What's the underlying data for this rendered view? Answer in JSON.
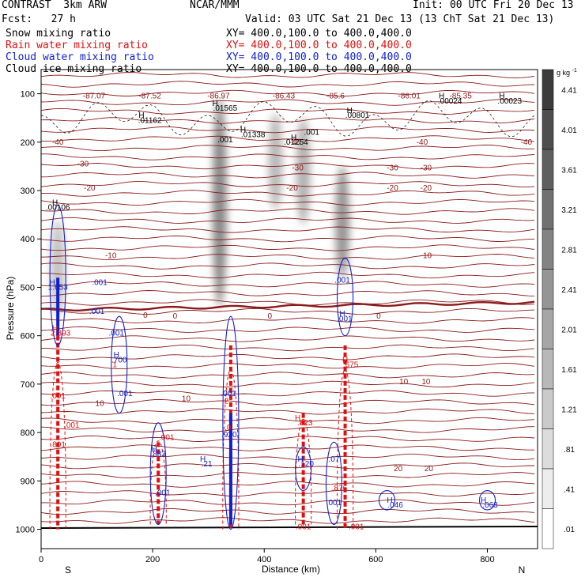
{
  "header": {
    "model": "CONTRAST  3km ARW",
    "center": "NCAR/MMM",
    "init": "Init: 00 UTC Fri 20 Dec 13",
    "fcst": "Fcst:   27 h",
    "valid": "Valid: 03 UTC Sat 21 Dec 13 (13 ChT Sat 21 Dec 13)"
  },
  "fields": [
    {
      "name": "Snow mixing ratio",
      "xy": "XY= 400.0,100.0 to 400.0,400.0",
      "color": "#000000"
    },
    {
      "name": "Rain water mixing ratio",
      "xy": "XY= 400.0,100.0 to 400.0,400.0",
      "color": "#e01010"
    },
    {
      "name": "Cloud water mixing ratio",
      "xy": "XY= 400.0,100.0 to 400.0,400.0",
      "color": "#1020d0"
    },
    {
      "name": "Cloud ice mixing ratio",
      "xy": "XY= 400.0,100.0 to 400.0,400.0",
      "color": "#000000"
    }
  ],
  "colors": {
    "temperature": "#8b1a1a",
    "rain": "#e01010",
    "cloud_water": "#1020d0",
    "snow_shade": "#6a6a6a"
  },
  "chart_data": {
    "type": "heatmap",
    "xlabel": "Distance (km)",
    "ylabel": "Pressure (hPa)",
    "x_ticks": [
      0,
      200,
      400,
      600,
      800
    ],
    "y_ticks": [
      100,
      200,
      300,
      400,
      500,
      600,
      700,
      800,
      900,
      1000
    ],
    "xlim": [
      0,
      890
    ],
    "ylim": [
      1040,
      50
    ],
    "y_direction": "pressure increasing downward",
    "end_labels": {
      "left": "S",
      "right": "N"
    },
    "colorbar": {
      "unit": "g kg",
      "unit_sup": "-1",
      "labels": [
        "4.41",
        "4.01",
        "3.61",
        "3.21",
        "2.81",
        "2.41",
        "2.01",
        "1.61",
        "1.21",
        ".81",
        ".41",
        ".01"
      ]
    },
    "snow_columns": [
      {
        "x": 320,
        "p_top": 110,
        "p_bottom": 540,
        "max": 3.0
      },
      {
        "x": 540,
        "p_top": 250,
        "p_bottom": 480,
        "max": 2.5
      },
      {
        "x": 470,
        "p_top": 150,
        "p_bottom": 370,
        "max": 1.6
      },
      {
        "x": 420,
        "p_top": 140,
        "p_bottom": 340,
        "max": 1.4
      },
      {
        "x": 30,
        "p_top": 360,
        "p_bottom": 560,
        "max": 1.0
      }
    ],
    "temperature_labels": [
      {
        "x": 95,
        "p": 110,
        "text": "-87.07"
      },
      {
        "x": 195,
        "p": 110,
        "text": "-87.52"
      },
      {
        "x": 318,
        "p": 110,
        "text": "-86.97"
      },
      {
        "x": 435,
        "p": 110,
        "text": "-86.43"
      },
      {
        "x": 528,
        "p": 110,
        "text": "-85.6"
      },
      {
        "x": 660,
        "p": 110,
        "text": "-86.01"
      },
      {
        "x": 752,
        "p": 110,
        "text": "-85.35"
      },
      {
        "x": 30,
        "p": 205,
        "text": "-40"
      },
      {
        "x": 455,
        "p": 205,
        "text": "-40"
      },
      {
        "x": 683,
        "p": 205,
        "text": "-40"
      },
      {
        "x": 870,
        "p": 205,
        "text": "-40"
      },
      {
        "x": 75,
        "p": 250,
        "text": "-30"
      },
      {
        "x": 460,
        "p": 258,
        "text": "-30"
      },
      {
        "x": 630,
        "p": 258,
        "text": "-30"
      },
      {
        "x": 690,
        "p": 258,
        "text": "-30"
      },
      {
        "x": 87,
        "p": 300,
        "text": "-20"
      },
      {
        "x": 450,
        "p": 300,
        "text": "-20"
      },
      {
        "x": 630,
        "p": 300,
        "text": "-20"
      },
      {
        "x": 690,
        "p": 300,
        "text": "-20"
      },
      {
        "x": 125,
        "p": 440,
        "text": "-10"
      },
      {
        "x": 690,
        "p": 440,
        "text": "-10"
      },
      {
        "x": 187,
        "p": 563,
        "text": "0"
      },
      {
        "x": 240,
        "p": 565,
        "text": "0"
      },
      {
        "x": 410,
        "p": 565,
        "text": "0"
      },
      {
        "x": 605,
        "p": 565,
        "text": "0"
      },
      {
        "x": 650,
        "p": 700,
        "text": "10"
      },
      {
        "x": 690,
        "p": 700,
        "text": "10"
      },
      {
        "x": 105,
        "p": 745,
        "text": "10"
      },
      {
        "x": 260,
        "p": 735,
        "text": "10"
      },
      {
        "x": 640,
        "p": 880,
        "text": "20"
      },
      {
        "x": 695,
        "p": 880,
        "text": "20"
      }
    ],
    "snow_labels": [
      {
        "x": 25,
        "p": 330,
        "text": "H"
      },
      {
        "x": 30,
        "p": 340,
        "text": ".00106"
      },
      {
        "x": 180,
        "p": 150,
        "text": "H"
      },
      {
        "x": 195,
        "p": 160,
        "text": ".01162"
      },
      {
        "x": 312,
        "p": 125,
        "text": "H"
      },
      {
        "x": 330,
        "p": 135,
        "text": ".01565"
      },
      {
        "x": 362,
        "p": 180,
        "text": "H"
      },
      {
        "x": 380,
        "p": 190,
        "text": ".01338"
      },
      {
        "x": 330,
        "p": 200,
        "text": ".001"
      },
      {
        "x": 485,
        "p": 185,
        "text": ".001"
      },
      {
        "x": 453,
        "p": 195,
        "text": "H"
      },
      {
        "x": 457,
        "p": 205,
        "text": ".01254"
      },
      {
        "x": 553,
        "p": 140,
        "text": "H"
      },
      {
        "x": 567,
        "p": 150,
        "text": ".00801"
      },
      {
        "x": 718,
        "p": 110,
        "text": "H"
      },
      {
        "x": 733,
        "p": 120,
        "text": ".00024"
      },
      {
        "x": 826,
        "p": 110,
        "text": "H"
      },
      {
        "x": 840,
        "p": 120,
        "text": ".00023"
      }
    ],
    "cloud_labels": [
      {
        "x": 20,
        "p": 495,
        "text": "H"
      },
      {
        "x": 30,
        "p": 505,
        "text": "1.653"
      },
      {
        "x": 105,
        "p": 495,
        "text": ".001"
      },
      {
        "x": 100,
        "p": 555,
        "text": ".001"
      },
      {
        "x": 135,
        "p": 600,
        "text": ".001"
      },
      {
        "x": 135,
        "p": 645,
        "text": "H"
      },
      {
        "x": 140,
        "p": 655,
        "text": ".700"
      },
      {
        "x": 150,
        "p": 725,
        "text": ".001"
      },
      {
        "x": 540,
        "p": 490,
        "text": ".001"
      },
      {
        "x": 540,
        "p": 560,
        "text": "H"
      },
      {
        "x": 544,
        "p": 570,
        "text": ".001"
      },
      {
        "x": 336,
        "p": 725,
        "text": ".001"
      },
      {
        "x": 337,
        "p": 810,
        "text": ".920"
      },
      {
        "x": 203,
        "p": 840,
        "text": "H"
      },
      {
        "x": 210,
        "p": 850,
        "text": ".883"
      },
      {
        "x": 218,
        "p": 930,
        "text": ".001"
      },
      {
        "x": 290,
        "p": 860,
        "text": "H"
      },
      {
        "x": 297,
        "p": 870,
        "text": ".21"
      },
      {
        "x": 465,
        "p": 860,
        "text": "H"
      },
      {
        "x": 475,
        "p": 870,
        "text": ".120"
      },
      {
        "x": 525,
        "p": 860,
        "text": ".07"
      },
      {
        "x": 525,
        "p": 950,
        "text": ".001"
      },
      {
        "x": 625,
        "p": 945,
        "text": "H"
      },
      {
        "x": 635,
        "p": 955,
        "text": ".046"
      },
      {
        "x": 793,
        "p": 945,
        "text": "H"
      },
      {
        "x": 805,
        "p": 955,
        "text": ".063"
      }
    ],
    "rain_labels": [
      {
        "x": 25,
        "p": 590,
        "text": "H"
      },
      {
        "x": 35,
        "p": 600,
        "text": "2.893"
      },
      {
        "x": 30,
        "p": 730,
        "text": ".001"
      },
      {
        "x": 55,
        "p": 790,
        "text": ".001"
      },
      {
        "x": 30,
        "p": 830,
        "text": ".801"
      },
      {
        "x": 130,
        "p": 665,
        "text": ".1"
      },
      {
        "x": 330,
        "p": 740,
        "text": ".2"
      },
      {
        "x": 335,
        "p": 795,
        "text": ".0"
      },
      {
        "x": 225,
        "p": 815,
        "text": ".001"
      },
      {
        "x": 460,
        "p": 775,
        "text": "H"
      },
      {
        "x": 473,
        "p": 785,
        "text": ".823"
      },
      {
        "x": 545,
        "p": 655,
        "text": "H"
      },
      {
        "x": 555,
        "p": 665,
        "text": ".675"
      },
      {
        "x": 535,
        "p": 920,
        "text": ".876"
      },
      {
        "x": 470,
        "p": 1000,
        "text": ".001"
      },
      {
        "x": 565,
        "p": 1000,
        "text": ".001"
      }
    ]
  }
}
